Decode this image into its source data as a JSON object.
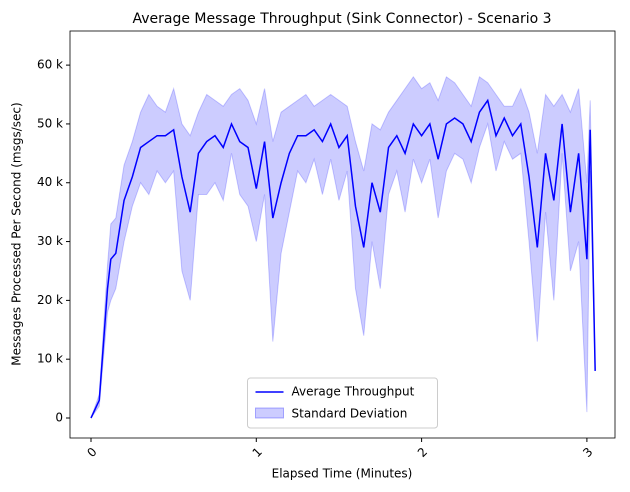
{
  "chart_data": {
    "type": "line",
    "title": "Average Message Throughput (Sink Connector) - Scenario 3",
    "xlabel": "Elapsed Time (Minutes)",
    "ylabel": "Messages Processed Per Second (msgs/sec)",
    "x": [
      0,
      0.05,
      0.1,
      0.12,
      0.15,
      0.2,
      0.25,
      0.3,
      0.35,
      0.4,
      0.45,
      0.5,
      0.55,
      0.6,
      0.65,
      0.7,
      0.75,
      0.8,
      0.85,
      0.9,
      0.95,
      1.0,
      1.05,
      1.1,
      1.15,
      1.2,
      1.25,
      1.3,
      1.35,
      1.4,
      1.45,
      1.5,
      1.55,
      1.6,
      1.65,
      1.7,
      1.75,
      1.8,
      1.85,
      1.9,
      1.95,
      2.0,
      2.05,
      2.1,
      2.15,
      2.2,
      2.25,
      2.3,
      2.35,
      2.4,
      2.45,
      2.5,
      2.55,
      2.6,
      2.65,
      2.7,
      2.75,
      2.8,
      2.85,
      2.9,
      2.95,
      3.0,
      3.02,
      3.05
    ],
    "series": [
      {
        "name": "Average Throughput",
        "color": "#0000ff",
        "values": [
          0,
          3000,
          22000,
          27000,
          28000,
          37000,
          41000,
          46000,
          47000,
          48000,
          48000,
          49000,
          41000,
          35000,
          45000,
          47000,
          48000,
          46000,
          50000,
          47000,
          46000,
          39000,
          47000,
          34000,
          40000,
          45000,
          48000,
          48000,
          49000,
          47000,
          50000,
          46000,
          48000,
          36000,
          29000,
          40000,
          35000,
          46000,
          48000,
          45000,
          50000,
          48000,
          50000,
          44000,
          50000,
          51000,
          50000,
          47000,
          52000,
          54000,
          48000,
          51000,
          48000,
          50000,
          41000,
          29000,
          45000,
          37000,
          50000,
          35000,
          45000,
          27000,
          49000,
          8000
        ]
      },
      {
        "name": "Standard Deviation",
        "color": "#0000ff",
        "upper": [
          0,
          4000,
          26000,
          33000,
          34000,
          43000,
          47000,
          52000,
          55000,
          53000,
          52000,
          56000,
          50000,
          48000,
          52000,
          55000,
          54000,
          53000,
          55000,
          56000,
          54000,
          50000,
          56000,
          47000,
          52000,
          53000,
          54000,
          55000,
          53000,
          54000,
          55000,
          54000,
          53000,
          47000,
          42000,
          50000,
          49000,
          52000,
          54000,
          56000,
          58000,
          56000,
          57000,
          54000,
          58000,
          57000,
          55000,
          53000,
          58000,
          57000,
          55000,
          53000,
          53000,
          56000,
          52000,
          45000,
          55000,
          53000,
          55000,
          52000,
          56000,
          40000,
          54000,
          8000
        ],
        "lower": [
          0,
          2000,
          18000,
          20000,
          22000,
          30000,
          36000,
          40000,
          38000,
          42000,
          40000,
          42000,
          25000,
          20000,
          38000,
          38000,
          40000,
          37000,
          45000,
          38000,
          36000,
          30000,
          38000,
          13000,
          28000,
          35000,
          42000,
          40000,
          44000,
          38000,
          44000,
          37000,
          42000,
          22000,
          14000,
          30000,
          22000,
          38000,
          42000,
          35000,
          44000,
          40000,
          44000,
          34000,
          42000,
          45000,
          44000,
          40000,
          46000,
          50000,
          42000,
          47000,
          44000,
          45000,
          30000,
          13000,
          35000,
          20000,
          45000,
          25000,
          30000,
          1000,
          42000,
          8000
        ]
      }
    ],
    "xlim": [
      -0.127,
      3.17
    ],
    "xticks": [
      0,
      1,
      2,
      3
    ],
    "ylim": [
      -3400,
      65800
    ],
    "yticks": [
      0,
      {
        "value": 10000,
        "label": "10 k"
      },
      {
        "value": 20000,
        "label": "20 k"
      },
      {
        "value": 30000,
        "label": "30 k"
      },
      {
        "value": 40000,
        "label": "40 k"
      },
      {
        "value": 50000,
        "label": "50 k"
      },
      {
        "value": 60000,
        "label": "60 k"
      }
    ],
    "legend": "lower center"
  }
}
